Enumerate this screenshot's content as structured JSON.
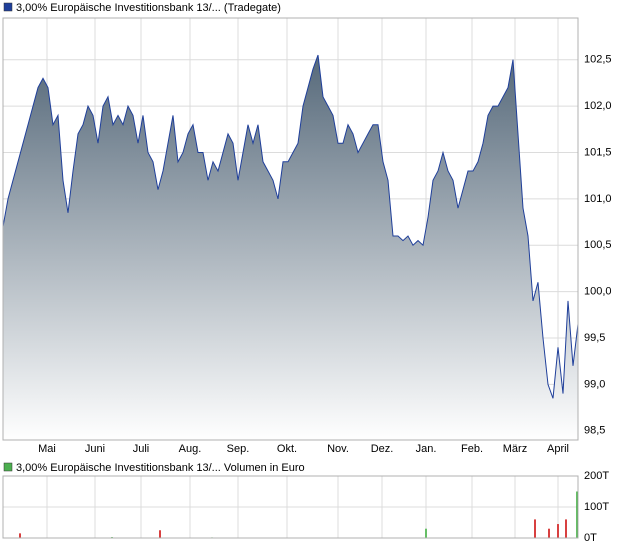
{
  "chart_data": [
    {
      "type": "area",
      "series": [
        {
          "name": "3,00% Europäische Investitionsbank 13/... (Tradegate)",
          "color": "#1f3f9a",
          "values": [
            100.7,
            101.0,
            101.2,
            101.4,
            101.6,
            101.8,
            102.0,
            102.2,
            102.3,
            102.2,
            101.8,
            101.9,
            101.2,
            100.85,
            101.3,
            101.7,
            101.8,
            102.0,
            101.9,
            101.6,
            102.0,
            102.1,
            101.8,
            101.9,
            101.8,
            102.0,
            101.9,
            101.6,
            101.9,
            101.5,
            101.4,
            101.1,
            101.3,
            101.6,
            101.9,
            101.4,
            101.5,
            101.7,
            101.8,
            101.5,
            101.5,
            101.2,
            101.4,
            101.3,
            101.5,
            101.7,
            101.6,
            101.2,
            101.5,
            101.8,
            101.6,
            101.8,
            101.4,
            101.3,
            101.2,
            101.0,
            101.4,
            101.4,
            101.5,
            101.6,
            102.0,
            102.2,
            102.4,
            102.55,
            102.1,
            102.0,
            101.9,
            101.6,
            101.6,
            101.8,
            101.7,
            101.5,
            101.6,
            101.7,
            101.8,
            101.8,
            101.4,
            101.2,
            100.6,
            100.6,
            100.55,
            100.6,
            100.5,
            100.55,
            100.5,
            100.8,
            101.2,
            101.3,
            101.5,
            101.3,
            101.2,
            100.9,
            101.1,
            101.3,
            101.3,
            101.4,
            101.6,
            101.9,
            102.0,
            102.0,
            102.1,
            102.2,
            102.5,
            101.7,
            100.9,
            100.6,
            99.9,
            100.1,
            99.5,
            99.0,
            98.85,
            99.4,
            98.9,
            99.9,
            99.2,
            99.65
          ]
        }
      ],
      "xlim": [
        0,
        115
      ],
      "xticks": [
        {
          "value": 8.8,
          "label": "Mai"
        },
        {
          "value": 18.4,
          "label": "Juni"
        },
        {
          "value": 27.6,
          "label": "Juli"
        },
        {
          "value": 37.4,
          "label": "Aug."
        },
        {
          "value": 47,
          "label": "Sep."
        },
        {
          "value": 56.8,
          "label": "Okt."
        },
        {
          "value": 67,
          "label": "Nov."
        },
        {
          "value": 75.8,
          "label": "Dez."
        },
        {
          "value": 84.6,
          "label": "Jan."
        },
        {
          "value": 93.8,
          "label": "Feb."
        },
        {
          "value": 102.4,
          "label": "März"
        },
        {
          "value": 111,
          "label": "April"
        }
      ],
      "ylim": [
        98.4,
        102.95
      ],
      "yticks": [
        {
          "value": 98.5,
          "label": "98,5"
        },
        {
          "value": 99.0,
          "label": "99,0"
        },
        {
          "value": 99.5,
          "label": "99,5"
        },
        {
          "value": 100.0,
          "label": "100,0"
        },
        {
          "value": 100.5,
          "label": "100,5"
        },
        {
          "value": 101.0,
          "label": "101,0"
        },
        {
          "value": 101.5,
          "label": "101,5"
        },
        {
          "value": 102.0,
          "label": "102,0"
        },
        {
          "value": 102.5,
          "label": "102,5"
        }
      ],
      "grid": true
    },
    {
      "type": "bar",
      "series": [
        {
          "name": "3,00% Europäische Investitionsbank 13/... Volumen in Euro",
          "color": "#4caf50",
          "x": [
            3.4,
            21.8,
            31.4,
            41.8,
            84.6,
            106.4,
            109.2,
            111,
            112.6,
            114.8
          ],
          "values": [
            15,
            3,
            25,
            2,
            30,
            60,
            30,
            45,
            60,
            150
          ],
          "colors": [
            "#cc0000",
            "#33aa33",
            "#cc0000",
            "#33aa33",
            "#33aa33",
            "#cc0000",
            "#cc0000",
            "#cc0000",
            "#cc0000",
            "#33aa33"
          ]
        }
      ],
      "xlim": [
        0,
        115
      ],
      "ylim": [
        0,
        200
      ],
      "yticks": [
        {
          "value": 0,
          "label": "0T"
        },
        {
          "value": 100,
          "label": "100T"
        },
        {
          "value": 200,
          "label": "200T"
        }
      ],
      "grid": true
    }
  ]
}
